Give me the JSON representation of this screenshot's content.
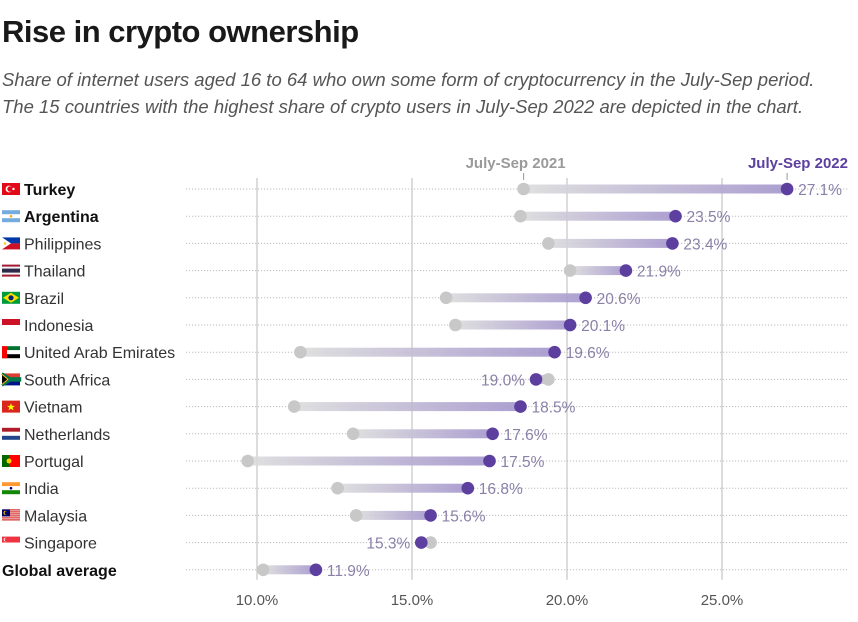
{
  "title": "Rise in crypto ownership",
  "subtitle": [
    "Share of internet users aged 16 to 64 who own some form of cryptocurrency in the July-Sep period.",
    "The 15 countries with the highest share of crypto users in July-Sep 2022 are depicted in the chart."
  ],
  "colors": {
    "series_2021": "#c8c8c8",
    "series_2022": "#5c3f9e",
    "bar_fill": "#b6a9d6",
    "legend_2021": "#9a9a9a",
    "legend_2022": "#5c3f9e",
    "value_label": "#8a80a8",
    "gridline": "#c4c4c4",
    "dotted_row": "#bdbdbd"
  },
  "chart_data": {
    "type": "dumbbell",
    "title": "Rise in crypto ownership",
    "xlabel": "",
    "ylabel": "",
    "xlim": [
      8.0,
      28.0
    ],
    "x_ticks": [
      10,
      15,
      20,
      25
    ],
    "x_tick_labels": [
      "10.0%",
      "15.0%",
      "20.0%",
      "25.0%"
    ],
    "grid": "vertical",
    "legend": [
      {
        "name": "July-Sep 2021",
        "position": "top, above first 2021 point"
      },
      {
        "name": "July-Sep 2022",
        "position": "top-right, above first 2022 point"
      }
    ],
    "series": [
      {
        "name": "July-Sep 2021",
        "values": [
          18.6,
          18.5,
          19.4,
          20.1,
          16.1,
          16.4,
          11.4,
          19.4,
          11.2,
          13.1,
          9.7,
          12.6,
          13.2,
          15.6,
          10.2
        ]
      },
      {
        "name": "July-Sep 2022",
        "values": [
          27.1,
          23.5,
          23.4,
          21.9,
          20.6,
          20.1,
          19.6,
          19.0,
          18.5,
          17.6,
          17.5,
          16.8,
          15.6,
          15.3,
          11.9
        ]
      }
    ],
    "categories": [
      "Turkey",
      "Argentina",
      "Philippines",
      "Thailand",
      "Brazil",
      "Indonesia",
      "United Arab Emirates",
      "South Africa",
      "Vietnam",
      "Netherlands",
      "Portugal",
      "India",
      "Malaysia",
      "Singapore",
      "Global average"
    ],
    "data_labels": [
      "27.1%",
      "23.5%",
      "23.4%",
      "21.9%",
      "20.6%",
      "20.1%",
      "19.6%",
      "19.0%",
      "18.5%",
      "17.6%",
      "17.5%",
      "16.8%",
      "15.6%",
      "15.3%",
      "11.9%"
    ],
    "bold_categories": [
      "Turkey",
      "Argentina",
      "Global average"
    ],
    "flags": [
      "turkey-flag",
      "argentina-flag",
      "philippines-flag",
      "thailand-flag",
      "brazil-flag",
      "indonesia-flag",
      "uae-flag",
      "south-africa-flag",
      "vietnam-flag",
      "netherlands-flag",
      "portugal-flag",
      "india-flag",
      "malaysia-flag",
      "singapore-flag",
      null
    ]
  }
}
